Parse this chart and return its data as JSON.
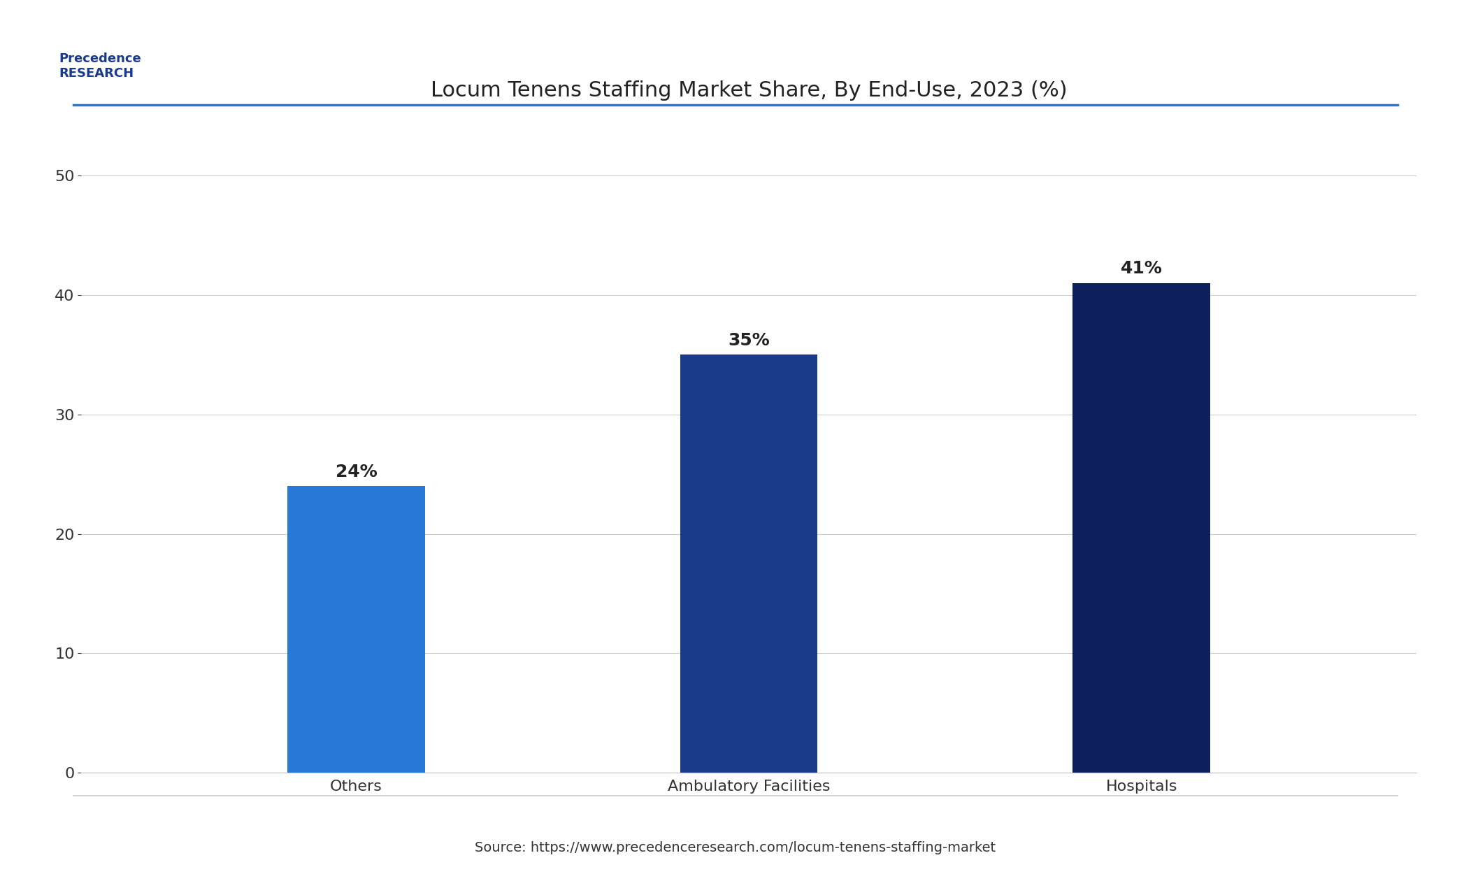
{
  "title": "Locum Tenens Staffing Market Share, By End-Use, 2023 (%)",
  "categories": [
    "Others",
    "Ambulatory Facilities",
    "Hospitals"
  ],
  "values": [
    24,
    35,
    41
  ],
  "bar_colors": [
    "#2878d6",
    "#1a3a8c",
    "#0d1f5c"
  ],
  "bar_labels": [
    "24%",
    "35%",
    "41%"
  ],
  "ylim": [
    0,
    55
  ],
  "yticks": [
    0,
    10,
    20,
    30,
    40,
    50
  ],
  "xlabel": "",
  "ylabel": "",
  "source_text": "Source: https://www.precedenceresearch.com/locum-tenens-staffing-market",
  "background_color": "#ffffff",
  "plot_bg_color": "#ffffff",
  "title_fontsize": 22,
  "tick_fontsize": 16,
  "label_fontsize": 18,
  "source_fontsize": 14,
  "bar_label_fontsize": 18,
  "title_color": "#222222",
  "tick_color": "#333333",
  "source_color": "#333333",
  "grid_color": "#cccccc",
  "bar_width": 0.35,
  "top_border_color": "#2878d6",
  "bottom_border_color": "#cccccc"
}
